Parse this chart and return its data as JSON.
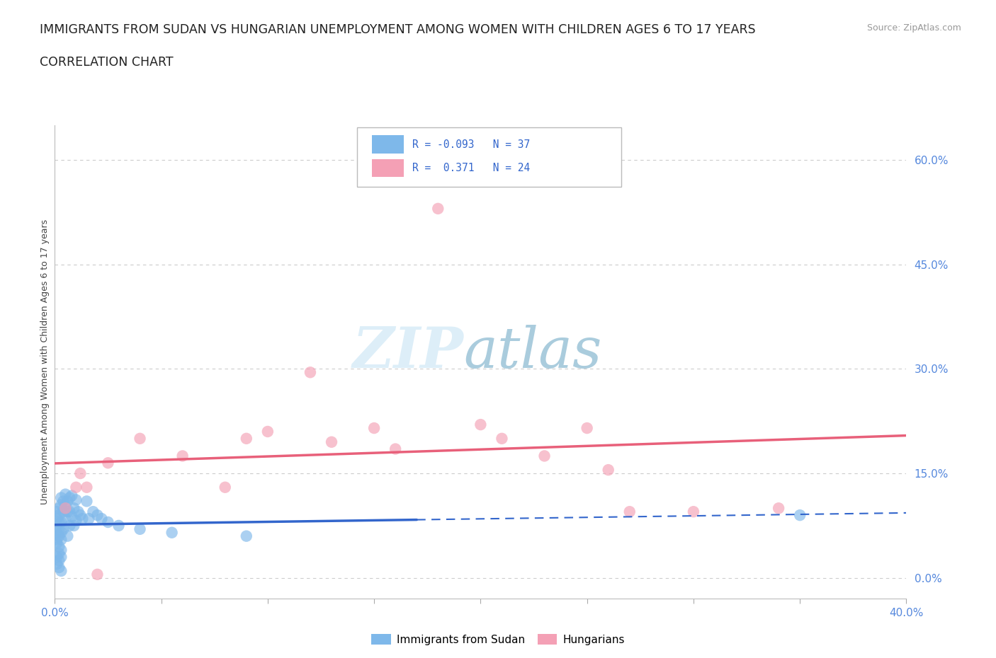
{
  "title_line1": "IMMIGRANTS FROM SUDAN VS HUNGARIAN UNEMPLOYMENT AMONG WOMEN WITH CHILDREN AGES 6 TO 17 YEARS",
  "title_line2": "CORRELATION CHART",
  "source_text": "Source: ZipAtlas.com",
  "ylabel": "Unemployment Among Women with Children Ages 6 to 17 years",
  "xlim": [
    0.0,
    0.4
  ],
  "ylim": [
    -0.03,
    0.65
  ],
  "yticks": [
    0.0,
    0.15,
    0.3,
    0.45,
    0.6
  ],
  "ytick_labels": [
    "0.0%",
    "15.0%",
    "30.0%",
    "45.0%",
    "60.0%"
  ],
  "xticks": [
    0.0,
    0.05,
    0.1,
    0.15,
    0.2,
    0.25,
    0.3,
    0.35,
    0.4
  ],
  "xtick_labels": [
    "0.0%",
    "",
    "",
    "",
    "",
    "",
    "",
    "",
    "40.0%"
  ],
  "blue_R": -0.093,
  "blue_N": 37,
  "pink_R": 0.371,
  "pink_N": 24,
  "blue_color": "#7eb8ea",
  "pink_color": "#f4a0b5",
  "blue_line_color": "#3366cc",
  "pink_line_color": "#e8607a",
  "grid_color": "#cccccc",
  "background_color": "#ffffff",
  "blue_scatter_x": [
    0.001,
    0.002,
    0.003,
    0.003,
    0.003,
    0.004,
    0.004,
    0.004,
    0.005,
    0.005,
    0.005,
    0.006,
    0.006,
    0.006,
    0.007,
    0.007,
    0.007,
    0.008,
    0.008,
    0.009,
    0.009,
    0.01,
    0.01,
    0.011,
    0.012,
    0.013,
    0.015,
    0.016,
    0.018,
    0.02,
    0.022,
    0.025,
    0.03,
    0.04,
    0.055,
    0.09,
    0.35
  ],
  "blue_scatter_y": [
    0.095,
    0.1,
    0.105,
    0.115,
    0.08,
    0.11,
    0.095,
    0.07,
    0.12,
    0.105,
    0.085,
    0.11,
    0.095,
    0.06,
    0.115,
    0.095,
    0.075,
    0.118,
    0.088,
    0.1,
    0.075,
    0.112,
    0.082,
    0.095,
    0.09,
    0.085,
    0.11,
    0.085,
    0.095,
    0.09,
    0.085,
    0.08,
    0.075,
    0.07,
    0.065,
    0.06,
    0.09
  ],
  "blue_cluster_x": [
    0.001,
    0.001,
    0.002,
    0.002,
    0.002,
    0.001,
    0.003,
    0.003,
    0.002,
    0.001,
    0.001,
    0.002,
    0.003,
    0.002,
    0.001,
    0.002,
    0.003,
    0.001,
    0.002,
    0.003
  ],
  "blue_cluster_y": [
    0.05,
    0.065,
    0.045,
    0.06,
    0.035,
    0.075,
    0.055,
    0.04,
    0.07,
    0.085,
    0.03,
    0.025,
    0.03,
    0.08,
    0.055,
    0.09,
    0.065,
    0.02,
    0.015,
    0.01
  ],
  "pink_scatter_x": [
    0.005,
    0.01,
    0.012,
    0.015,
    0.02,
    0.025,
    0.04,
    0.06,
    0.08,
    0.09,
    0.1,
    0.12,
    0.13,
    0.15,
    0.16,
    0.18,
    0.2,
    0.21,
    0.23,
    0.25,
    0.26,
    0.27,
    0.3,
    0.34
  ],
  "pink_scatter_y": [
    0.1,
    0.13,
    0.15,
    0.13,
    0.005,
    0.165,
    0.2,
    0.175,
    0.13,
    0.2,
    0.21,
    0.295,
    0.195,
    0.215,
    0.185,
    0.53,
    0.22,
    0.2,
    0.175,
    0.215,
    0.155,
    0.095,
    0.095,
    0.1
  ]
}
